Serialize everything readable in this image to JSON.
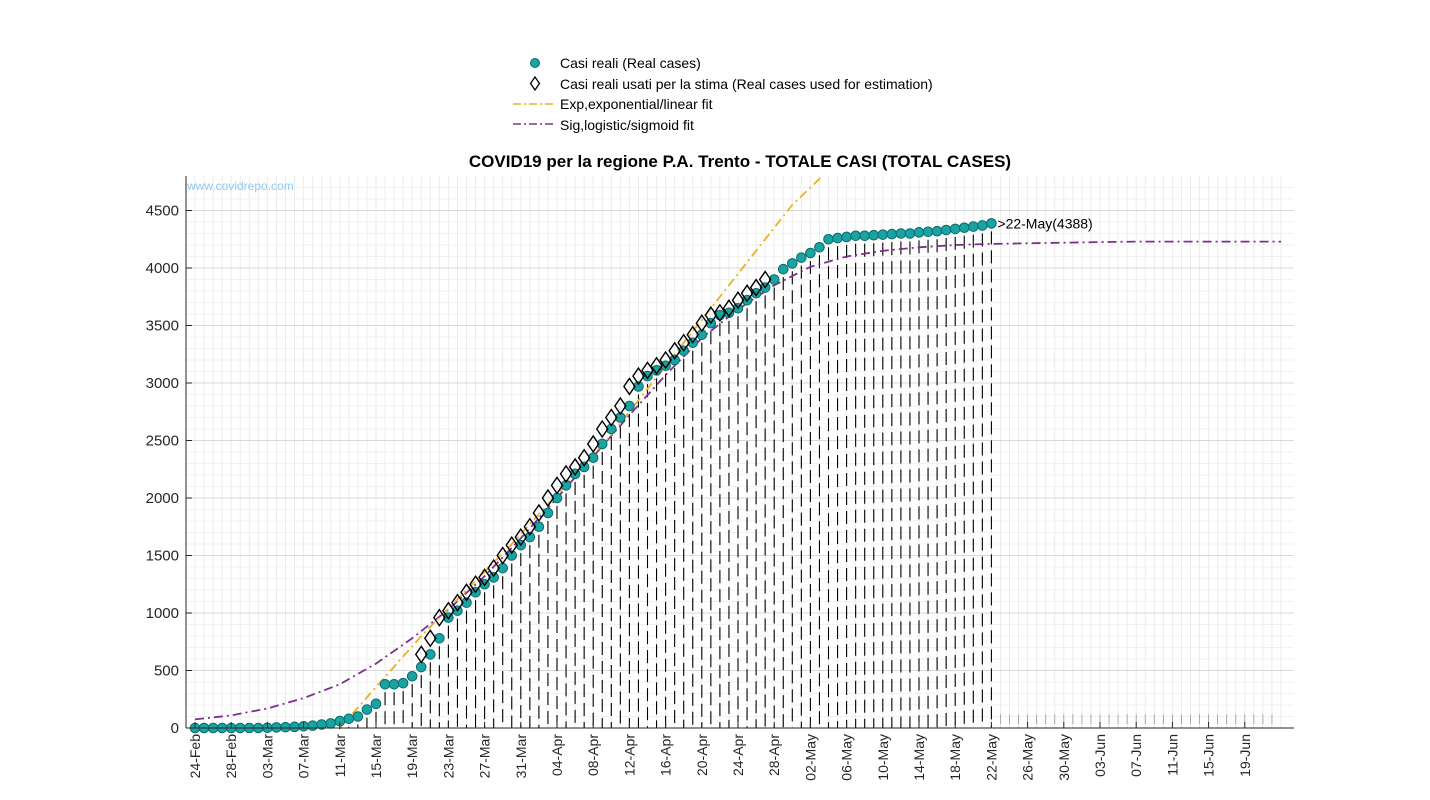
{
  "chart_data": {
    "type": "scatter",
    "title": "COVID19 per la regione P.A. Trento - TOTALE CASI (TOTAL CASES)",
    "watermark": "www.covidrepo.com",
    "xlabel": "",
    "ylabel": "",
    "x_range": [
      "2020-02-24",
      "2020-06-23"
    ],
    "ylim": [
      0,
      4800
    ],
    "y_ticks": [
      0,
      500,
      1000,
      1500,
      2000,
      2500,
      3000,
      3500,
      4000,
      4500
    ],
    "x_ticks": [
      "24-Feb",
      "28-Feb",
      "03-Mar",
      "07-Mar",
      "11-Mar",
      "15-Mar",
      "19-Mar",
      "23-Mar",
      "27-Mar",
      "31-Mar",
      "04-Apr",
      "08-Apr",
      "12-Apr",
      "16-Apr",
      "20-Apr",
      "24-Apr",
      "28-Apr",
      "02-May",
      "06-May",
      "10-May",
      "14-May",
      "18-May",
      "22-May",
      "26-May",
      "30-May",
      "03-Jun",
      "07-Jun",
      "11-Jun",
      "15-Jun",
      "19-Jun"
    ],
    "x_tick_dates": [
      "2020-02-24",
      "2020-02-28",
      "2020-03-03",
      "2020-03-07",
      "2020-03-11",
      "2020-03-15",
      "2020-03-19",
      "2020-03-23",
      "2020-03-27",
      "2020-03-31",
      "2020-04-04",
      "2020-04-08",
      "2020-04-12",
      "2020-04-16",
      "2020-04-20",
      "2020-04-24",
      "2020-04-28",
      "2020-05-02",
      "2020-05-06",
      "2020-05-10",
      "2020-05-14",
      "2020-05-18",
      "2020-05-22",
      "2020-05-26",
      "2020-05-30",
      "2020-06-03",
      "2020-06-07",
      "2020-06-11",
      "2020-06-15",
      "2020-06-19"
    ],
    "grid": true,
    "legend_position": "top-center",
    "series": [
      {
        "name": "Casi reali (Real cases)",
        "kind": "markers",
        "color": "#1aa3a3",
        "x": [
          "2020-02-24",
          "2020-02-25",
          "2020-02-26",
          "2020-02-27",
          "2020-02-28",
          "2020-02-29",
          "2020-03-01",
          "2020-03-02",
          "2020-03-03",
          "2020-03-04",
          "2020-03-05",
          "2020-03-06",
          "2020-03-07",
          "2020-03-08",
          "2020-03-09",
          "2020-03-10",
          "2020-03-11",
          "2020-03-12",
          "2020-03-13",
          "2020-03-14",
          "2020-03-15",
          "2020-03-16",
          "2020-03-17",
          "2020-03-18",
          "2020-03-19",
          "2020-03-20",
          "2020-03-21",
          "2020-03-22",
          "2020-03-23",
          "2020-03-24",
          "2020-03-25",
          "2020-03-26",
          "2020-03-27",
          "2020-03-28",
          "2020-03-29",
          "2020-03-30",
          "2020-03-31",
          "2020-04-01",
          "2020-04-02",
          "2020-04-03",
          "2020-04-04",
          "2020-04-05",
          "2020-04-06",
          "2020-04-07",
          "2020-04-08",
          "2020-04-09",
          "2020-04-10",
          "2020-04-11",
          "2020-04-12",
          "2020-04-13",
          "2020-04-14",
          "2020-04-15",
          "2020-04-16",
          "2020-04-17",
          "2020-04-18",
          "2020-04-19",
          "2020-04-20",
          "2020-04-21",
          "2020-04-22",
          "2020-04-23",
          "2020-04-24",
          "2020-04-25",
          "2020-04-26",
          "2020-04-27",
          "2020-04-28",
          "2020-04-29",
          "2020-04-30",
          "2020-05-01",
          "2020-05-02",
          "2020-05-03",
          "2020-05-04",
          "2020-05-05",
          "2020-05-06",
          "2020-05-07",
          "2020-05-08",
          "2020-05-09",
          "2020-05-10",
          "2020-05-11",
          "2020-05-12",
          "2020-05-13",
          "2020-05-14",
          "2020-05-15",
          "2020-05-16",
          "2020-05-17",
          "2020-05-18",
          "2020-05-19",
          "2020-05-20",
          "2020-05-21",
          "2020-05-22"
        ],
        "y": [
          0,
          0,
          0,
          0,
          0,
          0,
          0,
          0,
          2,
          5,
          7,
          10,
          15,
          20,
          30,
          40,
          60,
          80,
          100,
          160,
          210,
          380,
          380,
          390,
          450,
          530,
          640,
          780,
          960,
          1020,
          1090,
          1180,
          1250,
          1310,
          1390,
          1500,
          1590,
          1660,
          1750,
          1870,
          2000,
          2110,
          2210,
          2270,
          2350,
          2470,
          2600,
          2700,
          2800,
          2970,
          3060,
          3110,
          3150,
          3200,
          3280,
          3350,
          3420,
          3520,
          3590,
          3610,
          3650,
          3720,
          3780,
          3830,
          3900,
          3990,
          4040,
          4090,
          4130,
          4180,
          4250,
          4260,
          4270,
          4280,
          4280,
          4285,
          4290,
          4295,
          4300,
          4300,
          4310,
          4315,
          4320,
          4330,
          4340,
          4350,
          4360,
          4370,
          4388
        ]
      },
      {
        "name": "Casi reali usati per la stima (Real cases used for estimation)",
        "kind": "diamonds",
        "color": "#000000",
        "x": [
          "2020-03-20",
          "2020-03-21",
          "2020-03-22",
          "2020-03-23",
          "2020-03-24",
          "2020-03-25",
          "2020-03-26",
          "2020-03-27",
          "2020-03-28",
          "2020-03-29",
          "2020-03-30",
          "2020-03-31",
          "2020-04-01",
          "2020-04-02",
          "2020-04-03",
          "2020-04-04",
          "2020-04-05",
          "2020-04-06",
          "2020-04-07",
          "2020-04-08",
          "2020-04-09",
          "2020-04-10",
          "2020-04-11",
          "2020-04-12",
          "2020-04-13",
          "2020-04-14",
          "2020-04-15",
          "2020-04-16",
          "2020-04-17",
          "2020-04-18",
          "2020-04-19",
          "2020-04-20",
          "2020-04-21",
          "2020-04-22",
          "2020-04-23",
          "2020-04-24",
          "2020-04-25",
          "2020-04-26",
          "2020-04-27"
        ],
        "y": [
          640,
          780,
          960,
          1020,
          1090,
          1180,
          1250,
          1310,
          1390,
          1500,
          1590,
          1660,
          1750,
          1870,
          2000,
          2110,
          2210,
          2270,
          2350,
          2470,
          2600,
          2700,
          2800,
          2970,
          3060,
          3110,
          3150,
          3200,
          3280,
          3350,
          3420,
          3520,
          3590,
          3610,
          3650,
          3720,
          3780,
          3830,
          3900
        ]
      },
      {
        "name": "Exp,exponential/linear fit",
        "kind": "dashdot",
        "color": "#edb120",
        "x": [
          "2020-03-11",
          "2020-03-20",
          "2020-03-30",
          "2020-04-10",
          "2020-04-20",
          "2020-04-30",
          "2020-05-04"
        ],
        "y": [
          0,
          800,
          1600,
          2550,
          3550,
          4550,
          4850
        ]
      },
      {
        "name": "Sig,logistic/sigmoid fit",
        "kind": "dashdot",
        "color": "#7e2f8e",
        "x": [
          "2020-02-24",
          "2020-02-28",
          "2020-03-03",
          "2020-03-07",
          "2020-03-11",
          "2020-03-15",
          "2020-03-19",
          "2020-03-23",
          "2020-03-27",
          "2020-03-31",
          "2020-04-04",
          "2020-04-08",
          "2020-04-12",
          "2020-04-16",
          "2020-04-20",
          "2020-04-24",
          "2020-04-28",
          "2020-05-02",
          "2020-05-06",
          "2020-05-10",
          "2020-05-14",
          "2020-05-18",
          "2020-05-22",
          "2020-05-26",
          "2020-05-30",
          "2020-06-03",
          "2020-06-07",
          "2020-06-11",
          "2020-06-15",
          "2020-06-19",
          "2020-06-23"
        ],
        "y": [
          75,
          110,
          170,
          260,
          380,
          560,
          780,
          1030,
          1320,
          1650,
          2000,
          2360,
          2720,
          3070,
          3390,
          3640,
          3850,
          4010,
          4100,
          4150,
          4180,
          4200,
          4210,
          4215,
          4220,
          4225,
          4230,
          4230,
          4230,
          4230,
          4230
        ]
      }
    ],
    "vertical_marker_lines": {
      "x_start": "2020-03-11",
      "x_end": "2020-06-22",
      "dense_end": "2020-05-22",
      "color": "#000000"
    },
    "annotations": [
      {
        "text": ">22-May(4388)",
        "x": "2020-05-22",
        "y": 4388
      }
    ]
  }
}
